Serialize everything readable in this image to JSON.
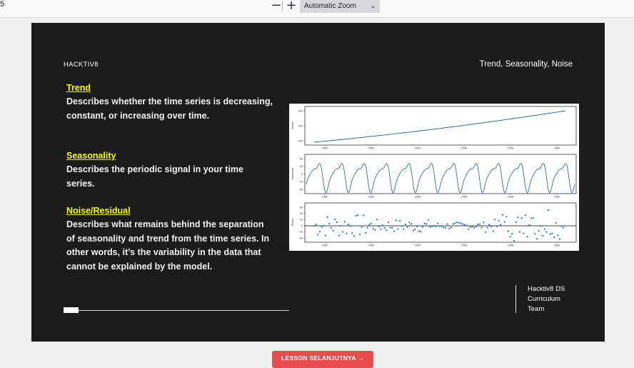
{
  "viewer": {
    "page_indicator": "5",
    "zoom_out": "−",
    "zoom_in": "+",
    "zoom_label": "Automatic Zoom",
    "zoom_chevron": "⌄"
  },
  "slide": {
    "brand": "HACKTIV8",
    "title": "Trend, Seasonality, Noise",
    "sections": [
      {
        "heading": "Trend",
        "body": "Describes whether the time series is decreasing, constant, or increasing over time."
      },
      {
        "heading": "Seasonality",
        "body": "Describes the periodic signal in your time series."
      },
      {
        "heading": "Noise/Residual",
        "body": "Describes what remains behind the separation of seasonality and trend from the time series. In other words, it’s the variability in the data that cannot be explained by the model."
      }
    ],
    "progress_fraction": 0.066,
    "credit_lines": [
      "Hacktiv8 DS",
      "Curriculum",
      "Team"
    ]
  },
  "figure": {
    "x_ticks": [
      "1950",
      "1952",
      "1954",
      "1956",
      "1958",
      "1960"
    ],
    "panels": [
      {
        "ylabel": "Trend",
        "y_ticks": [
          "400",
          "300",
          "200"
        ]
      },
      {
        "ylabel": "Seasonal",
        "y_ticks": [
          "50",
          "25",
          "0",
          "-25",
          "-50"
        ]
      },
      {
        "ylabel": "Resid",
        "y_ticks": [
          "60",
          "40",
          "20",
          "0",
          "-20",
          "-40"
        ]
      }
    ],
    "colors": {
      "line": "#1f5f8b",
      "points": "#1f77b4",
      "zero_line": "#000000"
    }
  },
  "footer": {
    "button_label": "LESSON SELANJUTNYA →"
  }
}
